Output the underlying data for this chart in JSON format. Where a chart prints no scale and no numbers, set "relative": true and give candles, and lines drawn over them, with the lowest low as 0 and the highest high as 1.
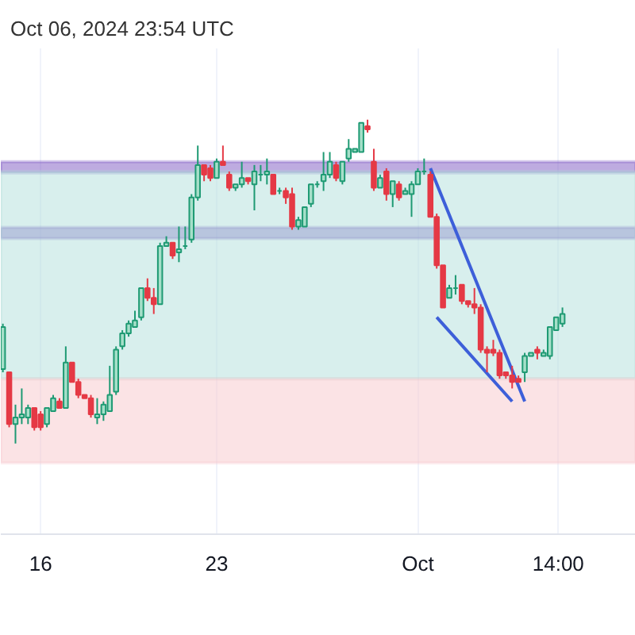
{
  "chart_data": {
    "type": "candlestick",
    "relative": true,
    "title": "Oct 06, 2024 23:54 UTC",
    "x": [
      "2024-09-14T12:00",
      "2024-09-14T18:00",
      "2024-09-15T00:00",
      "2024-09-15T06:00",
      "2024-09-15T12:00",
      "2024-09-15T18:00",
      "2024-09-16T00:00",
      "2024-09-16T06:00",
      "2024-09-16T12:00",
      "2024-09-16T18:00",
      "2024-09-17T00:00",
      "2024-09-17T06:00",
      "2024-09-17T12:00",
      "2024-09-17T18:00",
      "2024-09-18T00:00",
      "2024-09-18T06:00",
      "2024-09-18T12:00",
      "2024-09-18T18:00",
      "2024-09-19T00:00",
      "2024-09-19T06:00",
      "2024-09-19T12:00",
      "2024-09-19T18:00",
      "2024-09-20T00:00",
      "2024-09-20T06:00",
      "2024-09-20T12:00",
      "2024-09-20T18:00",
      "2024-09-21T00:00",
      "2024-09-21T06:00",
      "2024-09-21T12:00",
      "2024-09-21T18:00",
      "2024-09-22T00:00",
      "2024-09-22T06:00",
      "2024-09-22T12:00",
      "2024-09-22T18:00",
      "2024-09-23T00:00",
      "2024-09-23T06:00",
      "2024-09-23T12:00",
      "2024-09-23T18:00",
      "2024-09-24T00:00",
      "2024-09-24T06:00",
      "2024-09-24T12:00",
      "2024-09-24T18:00",
      "2024-09-25T00:00",
      "2024-09-25T06:00",
      "2024-09-25T12:00",
      "2024-09-25T18:00",
      "2024-09-26T00:00",
      "2024-09-26T06:00",
      "2024-09-26T12:00",
      "2024-09-26T18:00",
      "2024-09-27T00:00",
      "2024-09-27T06:00",
      "2024-09-27T12:00",
      "2024-09-27T18:00",
      "2024-09-28T00:00",
      "2024-09-28T06:00",
      "2024-09-28T12:00",
      "2024-09-28T18:00",
      "2024-09-29T00:00",
      "2024-09-29T06:00",
      "2024-09-29T12:00",
      "2024-09-29T18:00",
      "2024-09-30T00:00",
      "2024-09-30T06:00",
      "2024-09-30T12:00",
      "2024-09-30T18:00",
      "2024-10-01T00:00",
      "2024-10-01T06:00",
      "2024-10-01T12:00",
      "2024-10-01T18:00",
      "2024-10-02T00:00",
      "2024-10-02T06:00",
      "2024-10-02T12:00",
      "2024-10-02T18:00",
      "2024-10-03T00:00",
      "2024-10-03T06:00",
      "2024-10-03T12:00",
      "2024-10-03T18:00",
      "2024-10-04T00:00",
      "2024-10-04T06:00",
      "2024-10-04T12:00",
      "2024-10-04T18:00",
      "2024-10-05T00:00",
      "2024-10-05T06:00",
      "2024-10-05T12:00",
      "2024-10-05T18:00",
      "2024-10-06T00:00",
      "2024-10-06T06:00",
      "2024-10-06T12:00",
      "2024-10-06T18:00"
    ],
    "ohlc": [
      [
        0.23,
        0.37,
        0.22,
        0.36
      ],
      [
        0.22,
        0.22,
        0.05,
        0.06
      ],
      [
        0.06,
        0.12,
        0,
        0.08
      ],
      [
        0.08,
        0.17,
        0.06,
        0.09
      ],
      [
        0.08,
        0.12,
        0.06,
        0.11
      ],
      [
        0.11,
        0.11,
        0.04,
        0.05
      ],
      [
        0.09,
        0.1,
        0.04,
        0.05
      ],
      [
        0.06,
        0.11,
        0.05,
        0.11
      ],
      [
        0.1,
        0.15,
        0.1,
        0.14
      ],
      [
        0.13,
        0.14,
        0.11,
        0.11
      ],
      [
        0.11,
        0.3,
        0.11,
        0.25
      ],
      [
        0.25,
        0.25,
        0.19,
        0.19
      ],
      [
        0.19,
        0.2,
        0.14,
        0.15
      ],
      [
        0.15,
        0.15,
        0.14,
        0.14
      ],
      [
        0.14,
        0.15,
        0.08,
        0.09
      ],
      [
        0.08,
        0.14,
        0.06,
        0.09
      ],
      [
        0.09,
        0.13,
        0.07,
        0.12
      ],
      [
        0.1,
        0.24,
        0.1,
        0.15
      ],
      [
        0.16,
        0.3,
        0.15,
        0.29
      ],
      [
        0.3,
        0.35,
        0.29,
        0.34
      ],
      [
        0.34,
        0.38,
        0.33,
        0.37
      ],
      [
        0.36,
        0.41,
        0.36,
        0.38
      ],
      [
        0.39,
        0.48,
        0.38,
        0.48
      ],
      [
        0.48,
        0.51,
        0.44,
        0.45
      ],
      [
        0.45,
        0.48,
        0.4,
        0.43
      ],
      [
        0.43,
        0.62,
        0.43,
        0.61
      ],
      [
        0.61,
        0.64,
        0.61,
        0.62
      ],
      [
        0.62,
        0.62,
        0.57,
        0.58
      ],
      [
        0.59,
        0.67,
        0.56,
        0.6
      ],
      [
        0.61,
        0.67,
        0.6,
        0.61
      ],
      [
        0.63,
        0.77,
        0.62,
        0.76
      ],
      [
        0.76,
        0.92,
        0.75,
        0.86
      ],
      [
        0.86,
        0.86,
        0.81,
        0.83
      ],
      [
        0.85,
        0.86,
        0.81,
        0.82
      ],
      [
        0.82,
        0.88,
        0.82,
        0.87
      ],
      [
        0.87,
        0.92,
        0.86,
        0.86
      ],
      [
        0.83,
        0.84,
        0.78,
        0.79
      ],
      [
        0.79,
        0.8,
        0.78,
        0.8
      ],
      [
        0.8,
        0.87,
        0.79,
        0.82
      ],
      [
        0.82,
        0.82,
        0.8,
        0.81
      ],
      [
        0.8,
        0.86,
        0.72,
        0.84
      ],
      [
        0.83,
        0.86,
        0.81,
        0.83
      ],
      [
        0.83,
        0.88,
        0.8,
        0.84
      ],
      [
        0.83,
        0.83,
        0.77,
        0.77
      ],
      [
        0.78,
        0.79,
        0.77,
        0.78
      ],
      [
        0.78,
        0.79,
        0.74,
        0.76
      ],
      [
        0.77,
        0.79,
        0.66,
        0.67
      ],
      [
        0.67,
        0.7,
        0.66,
        0.69
      ],
      [
        0.67,
        0.73,
        0.67,
        0.73
      ],
      [
        0.74,
        0.8,
        0.73,
        0.8
      ],
      [
        0.8,
        0.81,
        0.79,
        0.8
      ],
      [
        0.81,
        0.9,
        0.78,
        0.83
      ],
      [
        0.83,
        0.9,
        0.82,
        0.87
      ],
      [
        0.86,
        0.87,
        0.81,
        0.82
      ],
      [
        0.81,
        0.87,
        0.8,
        0.87
      ],
      [
        0.88,
        0.94,
        0.87,
        0.91
      ],
      [
        0.9,
        0.91,
        0.9,
        0.91
      ],
      [
        0.9,
        0.99,
        0.9,
        0.99
      ],
      [
        0.98,
        1,
        0.96,
        0.97
      ],
      [
        0.87,
        0.91,
        0.78,
        0.79
      ],
      [
        0.79,
        0.83,
        0.79,
        0.82
      ],
      [
        0.84,
        0.85,
        0.75,
        0.77
      ],
      [
        0.77,
        0.81,
        0.73,
        0.81
      ],
      [
        0.8,
        0.81,
        0.75,
        0.76
      ],
      [
        0.77,
        0.79,
        0.77,
        0.78
      ],
      [
        0.77,
        0.81,
        0.7,
        0.8
      ],
      [
        0.8,
        0.85,
        0.8,
        0.84
      ],
      [
        0.84,
        0.88,
        0.83,
        0.84
      ],
      [
        0.83,
        0.84,
        0.7,
        0.7
      ],
      [
        0.7,
        0.71,
        0.54,
        0.55
      ],
      [
        0.55,
        0.55,
        0.42,
        0.42
      ],
      [
        0.45,
        0.49,
        0.45,
        0.48
      ],
      [
        0.48,
        0.52,
        0.46,
        0.48
      ],
      [
        0.49,
        0.49,
        0.43,
        0.44
      ],
      [
        0.44,
        0.44,
        0.42,
        0.43
      ],
      [
        0.43,
        0.48,
        0.4,
        0.42
      ],
      [
        0.42,
        0.43,
        0.28,
        0.29
      ],
      [
        0.29,
        0.3,
        0.22,
        0.28
      ],
      [
        0.29,
        0.32,
        0.27,
        0.28
      ],
      [
        0.28,
        0.29,
        0.2,
        0.21
      ],
      [
        0.22,
        0.22,
        0.2,
        0.21
      ],
      [
        0.21,
        0.24,
        0.17,
        0.19
      ],
      [
        0.2,
        0.21,
        0.19,
        0.19
      ],
      [
        0.22,
        0.28,
        0.19,
        0.27
      ],
      [
        0.27,
        0.28,
        0.27,
        0.28
      ],
      [
        0.29,
        0.3,
        0.26,
        0.28
      ],
      [
        0.27,
        0.29,
        0.27,
        0.28
      ],
      [
        0.27,
        0.36,
        0.26,
        0.36
      ],
      [
        0.35,
        0.39,
        0.35,
        0.39
      ],
      [
        0.37,
        0.42,
        0.36,
        0.4
      ]
    ],
    "xlim": [
      "2024-09-14T10:00",
      "2024-10-09T16:00"
    ],
    "xticks": [
      {
        "value": "2024-09-16",
        "label": "16"
      },
      {
        "value": "2024-09-23",
        "label": "23"
      },
      {
        "value": "2024-10-01",
        "label": "Oct"
      },
      {
        "value": "2024-10-06T14:00",
        "label": "14:00"
      }
    ],
    "tick_labels": "x",
    "grid": "x",
    "bands": [
      {
        "axis": "y",
        "from": 0.836,
        "to": 0.87,
        "color": "#7e57c2"
      },
      {
        "axis": "y",
        "from": 0.633,
        "to": 0.667,
        "color": "#7e57c2"
      },
      {
        "axis": "y",
        "from": 0.2,
        "to": 0.84,
        "color": "#b2dfdb"
      },
      {
        "axis": "y",
        "from": -0.06,
        "to": 0.2,
        "color": "#f8c8cc"
      }
    ],
    "series": [
      {
        "type": "line",
        "x": [
          "2024-10-01T12:00",
          "2024-10-05T06:00"
        ],
        "values": [
          0.85,
          0.13
        ],
        "color": "#3d5fd9"
      },
      {
        "type": "line",
        "x": [
          "2024-10-01T18:00",
          "2024-10-04T18:00"
        ],
        "values": [
          0.39,
          0.13
        ],
        "color": "#3d5fd9"
      }
    ]
  }
}
